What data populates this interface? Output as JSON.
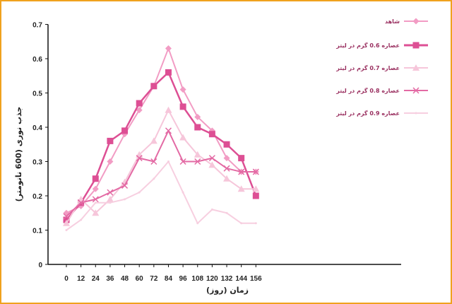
{
  "chart_data": {
    "type": "line",
    "xlabel": "زمان (روز)",
    "ylabel": "جذب نوری (600 نانومتر)",
    "x": [
      0,
      12,
      24,
      36,
      48,
      60,
      72,
      84,
      96,
      108,
      120,
      132,
      144,
      156
    ],
    "ylim": [
      0,
      0.7
    ],
    "yticks": [
      0,
      0.1,
      0.2,
      0.3,
      0.4,
      0.5,
      0.6,
      0.7
    ],
    "grid": false,
    "legend_position": "right",
    "series": [
      {
        "name": "شاهد",
        "color": "#f29cc4",
        "marker": "diamond",
        "values": [
          0.15,
          0.17,
          0.22,
          0.3,
          0.38,
          0.45,
          0.52,
          0.63,
          0.51,
          0.43,
          0.39,
          0.31,
          0.27,
          0.27
        ]
      },
      {
        "name": "عصاره 0.6 گرم در لیتر",
        "color": "#dd4f94",
        "marker": "square",
        "values": [
          0.13,
          0.18,
          0.25,
          0.36,
          0.39,
          0.47,
          0.52,
          0.56,
          0.46,
          0.4,
          0.38,
          0.35,
          0.31,
          0.2
        ]
      },
      {
        "name": "عصاره 0.7 گرم در لیتر",
        "color": "#f6c6da",
        "marker": "triangle",
        "values": [
          0.12,
          0.19,
          0.15,
          0.19,
          0.24,
          0.32,
          0.36,
          0.45,
          0.37,
          0.32,
          0.29,
          0.25,
          0.22,
          0.22
        ]
      },
      {
        "name": "عصاره 0.8 گرم در لیتر",
        "color": "#e36aa4",
        "marker": "x",
        "values": [
          0.14,
          0.18,
          0.19,
          0.21,
          0.23,
          0.31,
          0.3,
          0.39,
          0.3,
          0.3,
          0.31,
          0.28,
          0.27,
          0.27
        ]
      },
      {
        "name": "عصاره 0.9 گرم در لیتر",
        "color": "#f7cfe0",
        "marker": "none",
        "values": [
          0.1,
          0.13,
          0.18,
          0.18,
          0.19,
          0.21,
          0.25,
          0.3,
          0.21,
          0.12,
          0.16,
          0.15,
          0.12,
          0.12
        ]
      }
    ]
  }
}
